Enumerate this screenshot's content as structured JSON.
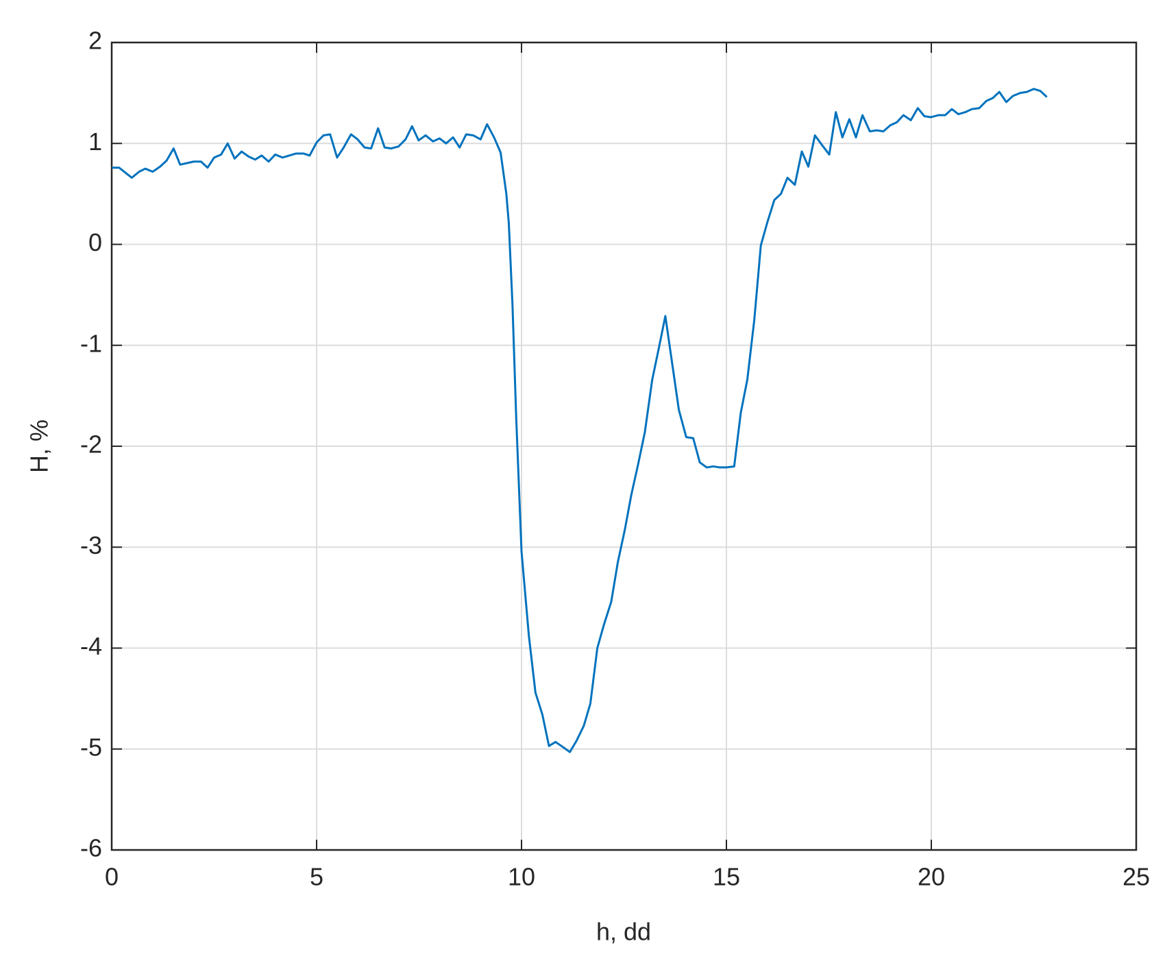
{
  "chart_data": {
    "type": "line",
    "xlabel": "h, dd",
    "ylabel": "H, %",
    "x": [
      0,
      0.18,
      0.49,
      0.67,
      0.82,
      1.0,
      1.18,
      1.34,
      1.51,
      1.67,
      2.0,
      2.18,
      2.34,
      2.5,
      2.67,
      2.83,
      3.0,
      3.17,
      3.34,
      3.5,
      3.66,
      3.83,
      3.99,
      4.17,
      4.5,
      4.68,
      4.83,
      5.0,
      5.17,
      5.33,
      5.5,
      5.66,
      5.84,
      6.0,
      6.17,
      6.33,
      6.5,
      6.66,
      6.82,
      7.0,
      7.17,
      7.33,
      7.49,
      7.66,
      7.84,
      8.0,
      8.16,
      8.33,
      8.49,
      8.65,
      8.82,
      9.0,
      9.16,
      9.33,
      9.49,
      9.63,
      9.69,
      9.78,
      9.87,
      10.0,
      10.18,
      10.34,
      10.51,
      10.67,
      10.83,
      11.01,
      11.18,
      11.34,
      11.52,
      11.68,
      11.85,
      12.01,
      12.19,
      12.35,
      12.52,
      12.68,
      12.84,
      13.01,
      13.19,
      13.35,
      13.51,
      13.68,
      13.84,
      14.02,
      14.19,
      14.35,
      14.52,
      14.68,
      14.84,
      15.0,
      15.19,
      15.35,
      15.51,
      15.68,
      15.84,
      16.0,
      16.17,
      16.33,
      16.49,
      16.67,
      16.84,
      17.0,
      17.16,
      17.34,
      17.51,
      17.67,
      17.83,
      18.0,
      18.16,
      18.32,
      18.5,
      18.67,
      18.83,
      19.0,
      19.16,
      19.32,
      19.5,
      19.67,
      19.83,
      19.99,
      20.17,
      20.34,
      20.5,
      20.66,
      20.83,
      20.99,
      21.17,
      21.34,
      21.5,
      21.66,
      21.83,
      21.99,
      22.17,
      22.33,
      22.5,
      22.66,
      22.82
    ],
    "series": [
      {
        "color": "#0072bd",
        "values": [
          0.76,
          0.76,
          0.66,
          0.72,
          0.75,
          0.72,
          0.77,
          0.83,
          0.95,
          0.79,
          0.82,
          0.82,
          0.76,
          0.86,
          0.89,
          1.0,
          0.85,
          0.92,
          0.87,
          0.84,
          0.88,
          0.82,
          0.89,
          0.86,
          0.9,
          0.9,
          0.88,
          1.01,
          1.08,
          1.09,
          0.86,
          0.96,
          1.09,
          1.04,
          0.96,
          0.95,
          1.15,
          0.96,
          0.95,
          0.97,
          1.04,
          1.17,
          1.03,
          1.08,
          1.02,
          1.05,
          1.0,
          1.06,
          0.96,
          1.09,
          1.08,
          1.04,
          1.19,
          1.06,
          0.91,
          0.5,
          0.21,
          -0.6,
          -1.71,
          -3.04,
          -3.88,
          -4.44,
          -4.66,
          -4.97,
          -4.93,
          -4.98,
          -5.03,
          -4.92,
          -4.77,
          -4.55,
          -4.0,
          -3.77,
          -3.54,
          -3.15,
          -2.83,
          -2.48,
          -2.19,
          -1.86,
          -1.34,
          -1.03,
          -0.71,
          -1.19,
          -1.64,
          -1.91,
          -1.92,
          -2.16,
          -2.21,
          -2.2,
          -2.21,
          -2.21,
          -2.2,
          -1.67,
          -1.34,
          -0.75,
          -0.01,
          0.22,
          0.44,
          0.5,
          0.66,
          0.59,
          0.92,
          0.77,
          1.08,
          0.98,
          0.89,
          1.31,
          1.06,
          1.24,
          1.06,
          1.28,
          1.12,
          1.13,
          1.12,
          1.18,
          1.21,
          1.28,
          1.23,
          1.35,
          1.27,
          1.26,
          1.28,
          1.28,
          1.34,
          1.29,
          1.31,
          1.34,
          1.35,
          1.42,
          1.45,
          1.51,
          1.41,
          1.47,
          1.5,
          1.51,
          1.54,
          1.52,
          1.46
        ]
      }
    ],
    "xlim": [
      0,
      25
    ],
    "xticks": [
      0,
      5,
      10,
      15,
      20,
      25
    ],
    "ylim": [
      -6,
      2
    ],
    "yticks": [
      -6,
      -5,
      -4,
      -3,
      -2,
      -1,
      0,
      1,
      2
    ],
    "grid": true
  }
}
